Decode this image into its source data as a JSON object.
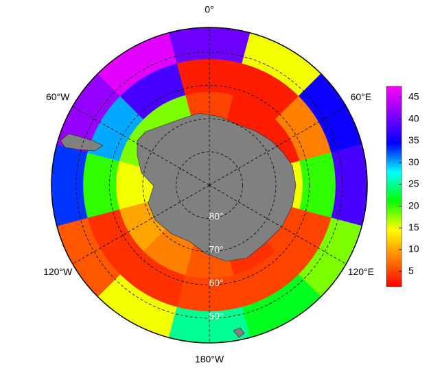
{
  "chart_data": {
    "type": "polar-map",
    "longitude_labels": [
      {
        "value": 0,
        "label": "0°"
      },
      {
        "value": 60,
        "label": "60°E"
      },
      {
        "value": 120,
        "label": "120°E"
      },
      {
        "value": 180,
        "label": "180°W"
      },
      {
        "value": -120,
        "label": "120°W"
      },
      {
        "value": -60,
        "label": "60°W"
      }
    ],
    "latitude_labels": [
      {
        "value": -80,
        "label": "80°"
      },
      {
        "value": -70,
        "label": "70°"
      },
      {
        "value": -60,
        "label": "60°"
      },
      {
        "value": -50,
        "label": "50°"
      }
    ],
    "sector_longitudes": [
      0,
      30,
      60,
      90,
      120,
      150,
      180,
      -150,
      -120,
      -90,
      -60,
      -30
    ],
    "rings": [
      {
        "values": [
          5,
          3,
          3,
          15,
          5,
          4,
          6,
          8,
          10,
          15,
          18,
          18
        ]
      },
      {
        "values": [
          3,
          3,
          8,
          20,
          5,
          5,
          5,
          4,
          4,
          20,
          30,
          38
        ]
      },
      {
        "values": [
          40,
          15,
          35,
          38,
          18,
          22,
          25,
          15,
          6,
          33,
          42,
          46
        ]
      }
    ],
    "colormap": [
      "#ff0000",
      "#ff8000",
      "#ffff00",
      "#00ff00",
      "#00ffff",
      "#0000ff",
      "#8000ff",
      "#ff00ff"
    ],
    "clim": [
      1.5,
      47.5
    ],
    "cticks": [
      5,
      10,
      15,
      20,
      25,
      30,
      35,
      40,
      45
    ]
  }
}
